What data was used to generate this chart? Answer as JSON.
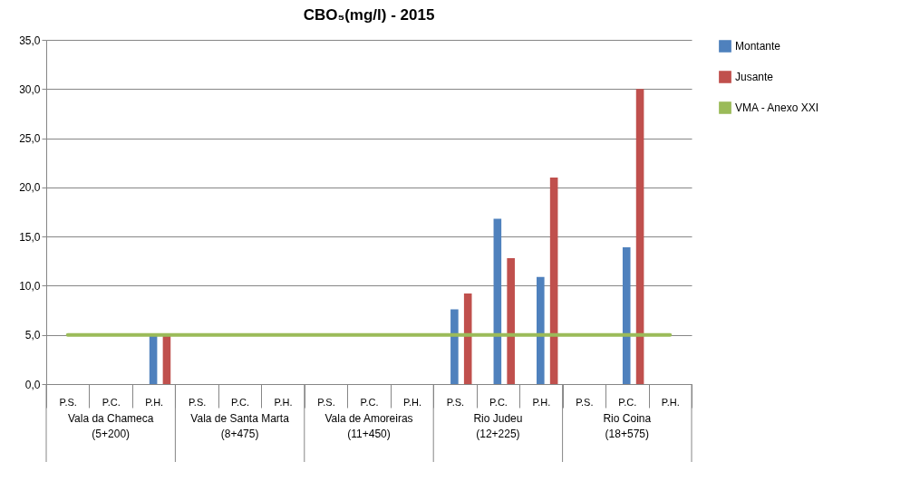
{
  "chart_data": {
    "type": "bar",
    "title": "CBO₅(mg/l) - 2015",
    "categories": [
      "P.S.",
      "P.C.",
      "P.H.",
      "P.S.",
      "P.C.",
      "P.H.",
      "P.S.",
      "P.C.",
      "P.H.",
      "P.S.",
      "P.C.",
      "P.H.",
      "P.S.",
      "P.C.",
      "P.H."
    ],
    "series": [
      {
        "name": "Montante",
        "color": "#4f81bd",
        "values": [
          null,
          null,
          5.0,
          null,
          null,
          null,
          null,
          null,
          null,
          7.6,
          16.8,
          10.9,
          null,
          13.9,
          null
        ]
      },
      {
        "name": "Jusante",
        "color": "#c0504d",
        "values": [
          null,
          null,
          5.0,
          null,
          null,
          null,
          null,
          null,
          null,
          9.2,
          12.8,
          21.0,
          null,
          30.0,
          null
        ]
      },
      {
        "name": "VMA - Anexo XXI",
        "type": "line",
        "color": "#9bbb59",
        "values": [
          5,
          5,
          5,
          5,
          5,
          5,
          5,
          5,
          5,
          5,
          5,
          5,
          5,
          5,
          5
        ]
      }
    ],
    "annotations": [
      "Vala da Chameca (5+200)",
      "Vala de Santa Marta (8+475)",
      "Vala de Amoreiras (11+450)",
      "Rio Judeu (12+225)",
      "Rio Coina (18+575)"
    ],
    "ylim": [
      0,
      35
    ],
    "yticks": [
      {
        "value": 0,
        "label": "0,0"
      },
      {
        "value": 5,
        "label": "5,0"
      },
      {
        "value": 10,
        "label": "10,0"
      },
      {
        "value": 15,
        "label": "15,0"
      },
      {
        "value": 20,
        "label": "20,0"
      },
      {
        "value": 25,
        "label": "25,0"
      },
      {
        "value": 30,
        "label": "30,0"
      },
      {
        "value": 35,
        "label": "35,0"
      }
    ],
    "grid": "y",
    "legend": "right"
  }
}
